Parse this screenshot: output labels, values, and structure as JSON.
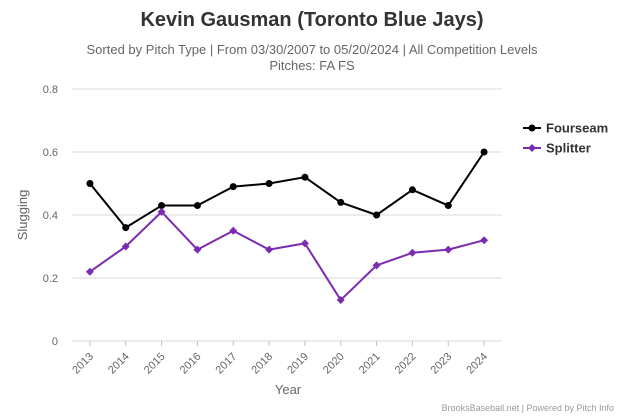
{
  "chart_data": {
    "type": "line",
    "title": "Kevin Gausman (Toronto Blue Jays)",
    "subtitle_line1": "Sorted by Pitch Type | From 03/30/2007 to 05/20/2024 | All Competition Levels",
    "subtitle_line2": "Pitches: FA FS",
    "xlabel": "Year",
    "ylabel": "Slugging",
    "categories": [
      "2013",
      "2014",
      "2015",
      "2016",
      "2017",
      "2018",
      "2019",
      "2020",
      "2021",
      "2022",
      "2023",
      "2024"
    ],
    "ylim": [
      0,
      0.8
    ],
    "yticks": [
      "0",
      "0.2",
      "0.4",
      "0.6",
      "0.8"
    ],
    "grid": true,
    "legend_position": "right",
    "series": [
      {
        "name": "Fourseam",
        "color": "#000000",
        "marker": "circle",
        "values": [
          0.5,
          0.36,
          0.43,
          0.43,
          0.49,
          0.5,
          0.52,
          0.44,
          0.4,
          0.48,
          0.43,
          0.6
        ]
      },
      {
        "name": "Splitter",
        "color": "#7b2bb0",
        "marker": "diamond",
        "values": [
          0.22,
          0.3,
          0.41,
          0.29,
          0.35,
          0.29,
          0.31,
          0.13,
          0.24,
          0.28,
          0.29,
          0.32
        ]
      }
    ],
    "credits": "BrooksBaseball.net | Powered by Pitch Info"
  }
}
